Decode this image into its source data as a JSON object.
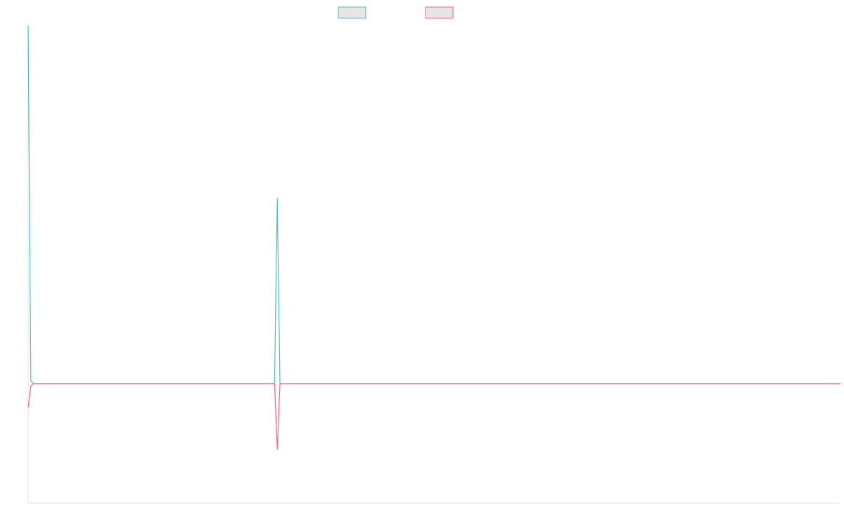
{
  "chart_data": {
    "type": "line",
    "title": "",
    "xlabel": "",
    "ylabel": "",
    "grid": false,
    "legend_position": "top-center",
    "ylim": [
      -1.0,
      3.0
    ],
    "x_count": 301,
    "x_start": 0,
    "series": [
      {
        "name": "",
        "color": "#4bc0c0",
        "fill": "#e6e6e6",
        "points": [
          [
            0,
            3.0
          ],
          [
            1,
            0.02
          ],
          [
            2,
            0.0
          ],
          [
            91,
            0.0
          ],
          [
            92,
            1.55
          ],
          [
            93,
            0.0
          ],
          [
            300,
            0.0
          ]
        ]
      },
      {
        "name": "",
        "color": "#ff6384",
        "fill": "#e6e6e6",
        "points": [
          [
            0,
            -0.2
          ],
          [
            1,
            -0.02
          ],
          [
            2,
            0.0
          ],
          [
            91,
            0.0
          ],
          [
            92,
            -0.55
          ],
          [
            93,
            0.0
          ],
          [
            300,
            0.0
          ]
        ]
      }
    ]
  }
}
